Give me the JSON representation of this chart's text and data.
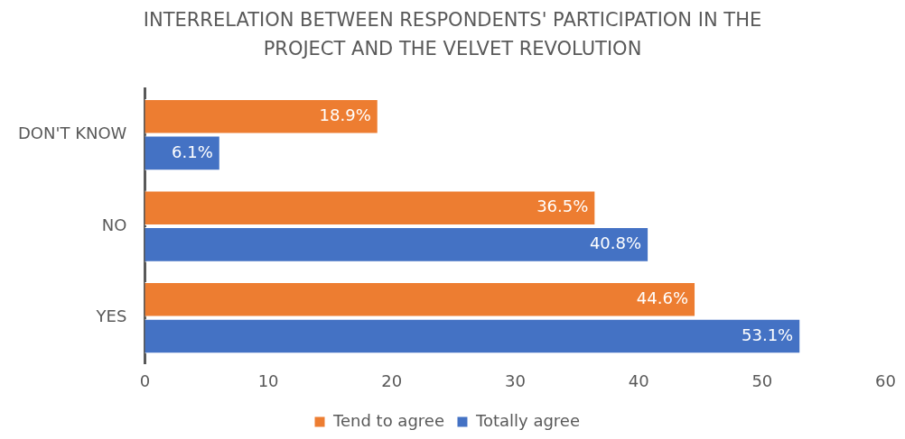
{
  "chart_data": {
    "type": "bar",
    "orientation": "horizontal",
    "title": "INTERRELATION BETWEEN RESPONDENTS' PARTICIPATION IN THE PROJECT AND THE VELVET REVOLUTION",
    "categories": [
      "DON'T KNOW",
      "NO",
      "YES"
    ],
    "series": [
      {
        "name": "Tend to agree",
        "color": "#ed7d31",
        "values": [
          18.9,
          36.5,
          44.6
        ],
        "value_labels": [
          "18.9%",
          "36.5%",
          "44.6%"
        ]
      },
      {
        "name": "Totally agree",
        "color": "#4472c4",
        "values": [
          6.1,
          40.8,
          53.1
        ],
        "value_labels": [
          "6.1%",
          "40.8%",
          "53.1%"
        ]
      }
    ],
    "xlim": [
      0,
      60
    ],
    "xticks": [
      0,
      10,
      20,
      30,
      40,
      50,
      60
    ],
    "grid": false,
    "legend": "bottom"
  }
}
